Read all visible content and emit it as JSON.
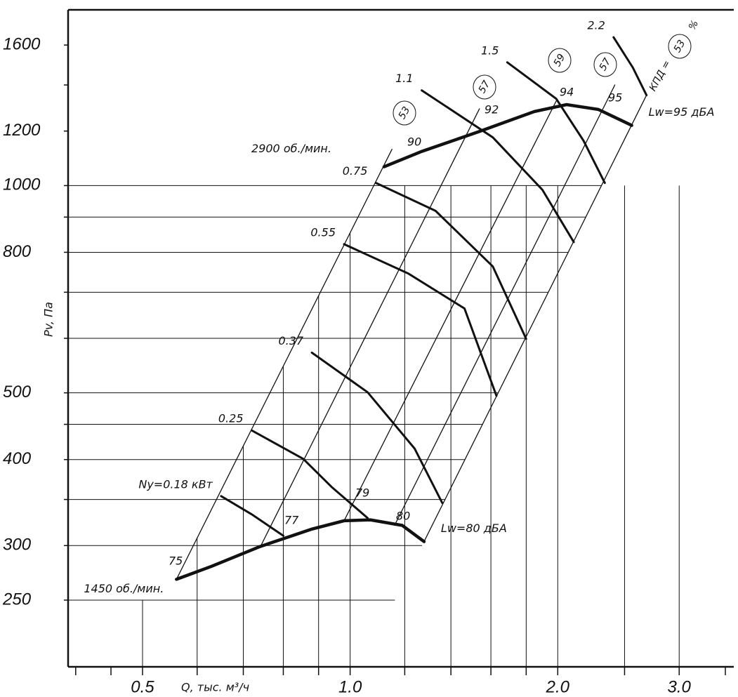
{
  "chart_data": {
    "type": "fan-curve",
    "x_label": "Q, тыс. м³/ч",
    "y_label": "Pv, Па",
    "xlog": true,
    "ylog": true,
    "xlim": [
      0.39,
      3.6
    ],
    "ylim": [
      200,
      1800
    ],
    "xticks": [
      0.5,
      {
        "value": 1,
        "label": "1.0"
      },
      {
        "value": 2,
        "label": "2.0"
      },
      {
        "value": 3,
        "label": "3.0"
      }
    ],
    "x_minor_ticks": [
      0.4,
      0.45,
      0.6,
      0.7,
      0.8,
      0.9,
      1.2,
      1.4,
      1.6,
      1.8,
      2.5,
      3.5
    ],
    "yticks": [
      250,
      300,
      400,
      500,
      800,
      1000,
      1200,
      1600
    ],
    "y_minor_ticks": [
      350,
      450,
      600,
      700,
      900,
      1400
    ],
    "grid": true,
    "color": "#111111",
    "speed_curves": [
      {
        "name": "2900 об./мин.",
        "noise_label": "Lw=95 дБА",
        "x": [
          1.12,
          1.27,
          1.535,
          1.85,
          2.06,
          2.29,
          2.56
        ],
        "y": [
          1065,
          1121,
          1197,
          1281,
          1311,
          1290,
          1223
        ]
      },
      {
        "name": "1450 об./мин.",
        "noise_label": "Lw=80 дБА",
        "x": [
          0.56,
          0.63,
          0.74,
          0.88,
          0.98,
          1.07,
          1.19,
          1.28
        ],
        "y": [
          268,
          280,
          299,
          317,
          326,
          327,
          321,
          304
        ]
      }
    ],
    "power_curves": [
      {
        "name": "Ny=0.18 кВт",
        "x": [
          0.65,
          0.72,
          0.8
        ],
        "y": [
          354,
          333,
          310
        ]
      },
      {
        "name": "0.25",
        "x": [
          0.72,
          0.855,
          0.94,
          1.06
        ],
        "y": [
          441,
          401,
          365,
          329
        ]
      },
      {
        "name": "0.37",
        "x": [
          0.88,
          1.06,
          1.24,
          1.36
        ],
        "y": [
          572,
          501,
          415,
          346
        ]
      },
      {
        "name": "0.55",
        "x": [
          0.98,
          1.215,
          1.465,
          1.63
        ],
        "y": [
          822,
          745,
          663,
          495
        ]
      },
      {
        "name": "0.75",
        "x": [
          1.09,
          1.33,
          1.61,
          1.8
        ],
        "y": [
          1009,
          919,
          763,
          599
        ]
      },
      {
        "name": "1.1",
        "x": [
          1.27,
          1.61,
          1.9,
          2.11
        ],
        "y": [
          1375,
          1175,
          986,
          828
        ]
      },
      {
        "name": "1.5",
        "x": [
          1.69,
          1.99,
          2.18,
          2.34
        ],
        "y": [
          1510,
          1337,
          1162,
          1009
        ]
      },
      {
        "name": "2.2",
        "x": [
          2.41,
          2.57,
          2.69
        ],
        "y": [
          1642,
          1484,
          1353
        ]
      }
    ],
    "efficiency_label": "КПД =",
    "efficiency_unit": "%",
    "efficiency_lines": [
      {
        "efficiency": 53,
        "noise_high": 90,
        "noise_low": 75,
        "x": [
          0.56,
          1.15
        ],
        "y": [
          268,
          1129
        ]
      },
      {
        "efficiency": 57,
        "noise_high": 92,
        "noise_low": 77,
        "x": [
          0.74,
          1.54
        ],
        "y": [
          298,
          1293
        ]
      },
      {
        "efficiency": 59,
        "noise_high": 94,
        "noise_low": 79,
        "x": [
          0.98,
          1.99
        ],
        "y": [
          326,
          1327
        ]
      },
      {
        "efficiency": 57,
        "noise_high": 95,
        "noise_low": 80,
        "x": [
          1.16,
          2.42
        ],
        "y": [
          321,
          1400
        ]
      },
      {
        "efficiency": 53,
        "x": [
          1.28,
          2.69
        ],
        "y": [
          304,
          1353
        ]
      }
    ]
  }
}
